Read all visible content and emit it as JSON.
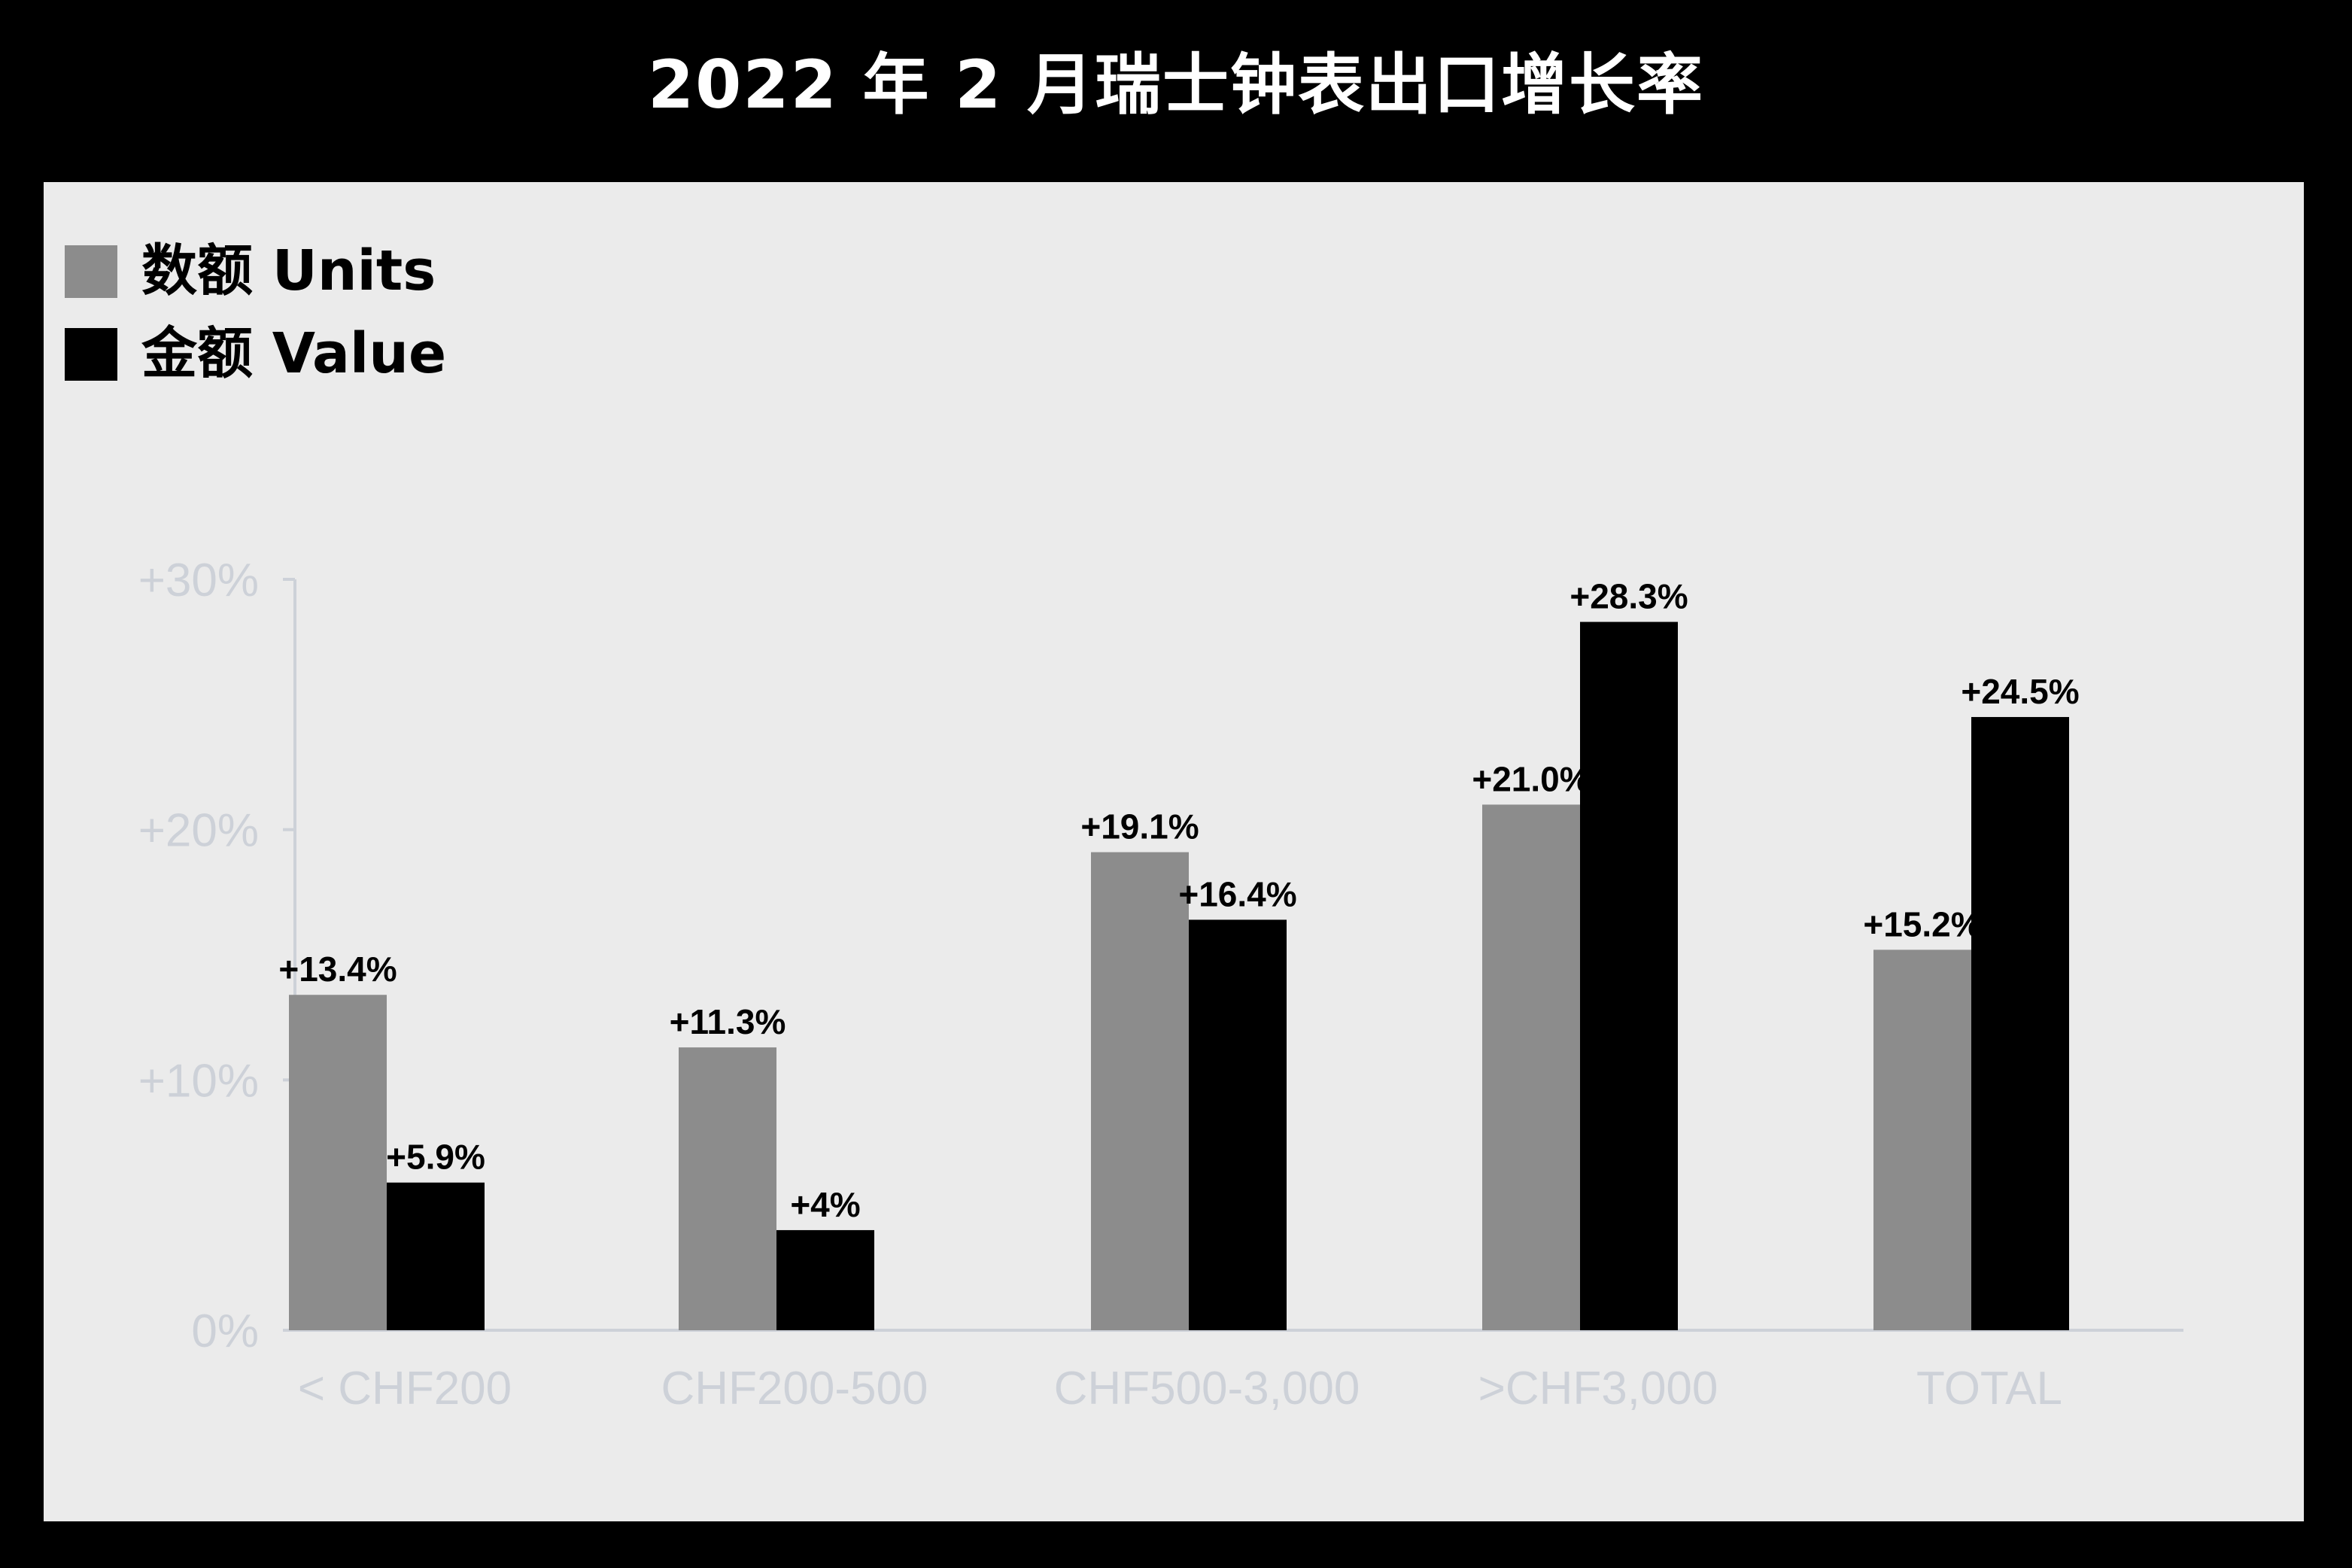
{
  "chart_data": {
    "type": "bar",
    "title": "2022 年 2 月瑞士钟表出口增长率",
    "categories": [
      "< CHF200",
      "CHF200-500",
      "CHF500-3,000",
      ">CHF3,000",
      "TOTAL"
    ],
    "series": [
      {
        "name": "数额 Units",
        "color": "#8c8c8c",
        "values": [
          13.4,
          11.3,
          19.1,
          21.0,
          15.2
        ],
        "labels": [
          "+13.4%",
          "+11.3%",
          "+19.1%",
          "+21.0%",
          "+15.2%"
        ]
      },
      {
        "name": "金额 Value",
        "color": "#000000",
        "values": [
          5.9,
          4,
          16.4,
          28.3,
          24.5
        ],
        "labels": [
          "+5.9%",
          "+4%",
          "+16.4%",
          "+28.3%",
          "+24.5%"
        ]
      }
    ],
    "ylim": [
      0,
      30
    ],
    "yticks": [
      0,
      10,
      20,
      30
    ],
    "ytick_labels": [
      "0%",
      "+10%",
      "+20%",
      "+30%"
    ],
    "xlabel": "",
    "ylabel": "",
    "legend": "top-left",
    "grid": false
  }
}
